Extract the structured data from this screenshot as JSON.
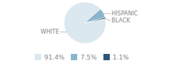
{
  "chart_data": {
    "type": "pie",
    "categories": [
      "WHITE",
      "HISPANIC",
      "BLACK"
    ],
    "values": [
      91.4,
      7.5,
      1.1
    ],
    "value_labels": [
      "91.4%",
      "7.5%",
      "1.1%"
    ],
    "colors": [
      "#dce8f0",
      "#8ab4cc",
      "#2d567a"
    ],
    "legend": "bottom"
  }
}
